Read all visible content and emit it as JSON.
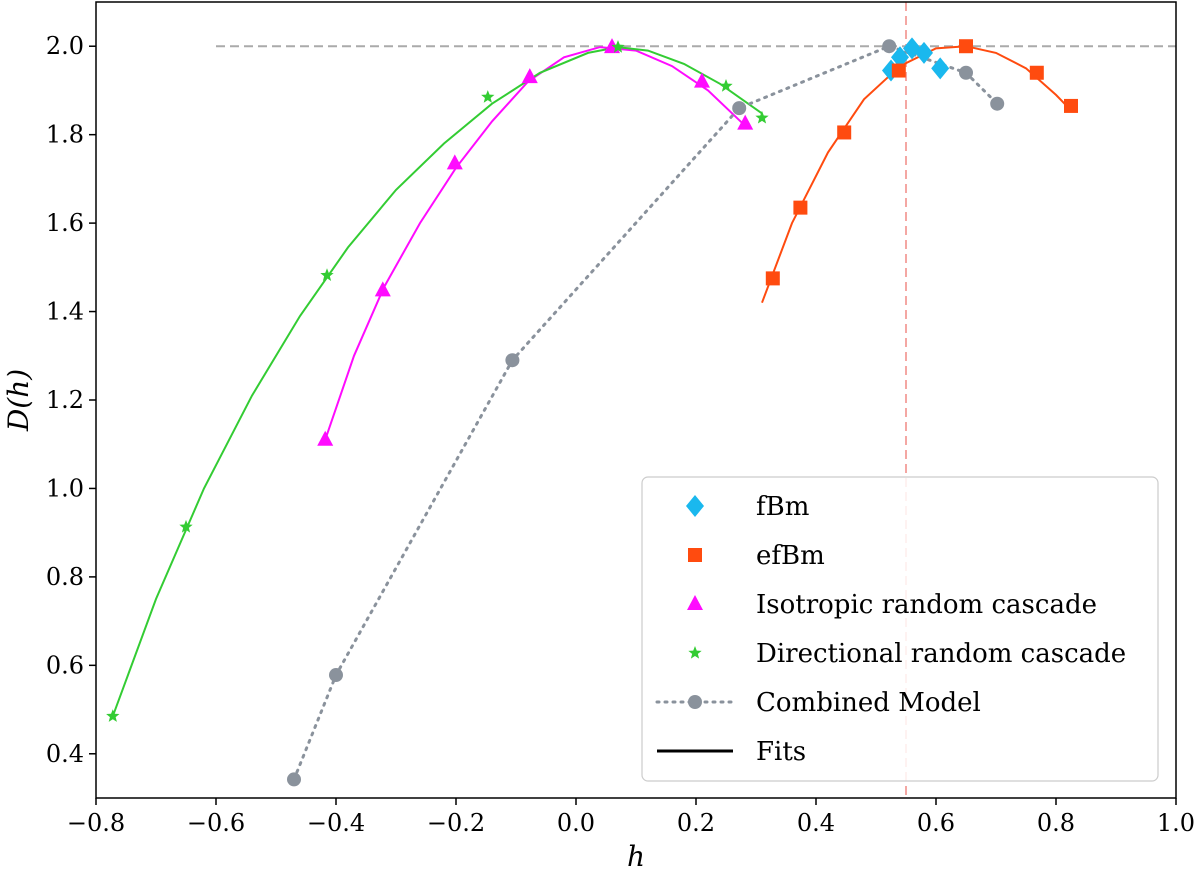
{
  "chart_data": {
    "type": "scatter",
    "title": "",
    "xlabel": "h",
    "ylabel": "D(h)",
    "xlim": [
      -0.8,
      1.0
    ],
    "ylim": [
      0.3,
      2.1
    ],
    "xticks": [
      -0.8,
      -0.6,
      -0.4,
      -0.2,
      0.0,
      0.2,
      0.4,
      0.6,
      0.8,
      1.0
    ],
    "xtick_labels": [
      "−0.8",
      "−0.6",
      "−0.4",
      "−0.2",
      "0.0",
      "0.2",
      "0.4",
      "0.6",
      "0.8",
      "1.0"
    ],
    "yticks": [
      0.4,
      0.6,
      0.8,
      1.0,
      1.2,
      1.4,
      1.6,
      1.8,
      2.0
    ],
    "ytick_labels": [
      "0.4",
      "0.6",
      "0.8",
      "1.0",
      "1.2",
      "1.4",
      "1.6",
      "1.8",
      "2.0"
    ],
    "grid": false,
    "legend_position": "lower-right",
    "reference_lines": {
      "horizontal": {
        "y": 2.0,
        "x_from": -0.6,
        "x_to": 1.0,
        "color": "#aaaaaa",
        "style": "dashed"
      },
      "vertical": {
        "x": 0.55,
        "color": "#f4a7a3",
        "style": "dashed"
      }
    },
    "series": [
      {
        "name": "fBm",
        "marker": "diamond",
        "color": "#1ab8ee",
        "x": [
          0.525,
          0.54,
          0.56,
          0.58,
          0.607
        ],
        "y": [
          1.945,
          1.975,
          1.995,
          1.985,
          1.95
        ]
      },
      {
        "name": "efBm",
        "marker": "square",
        "color": "#ff4b0f",
        "x": [
          0.328,
          0.374,
          0.447,
          0.538,
          0.65,
          0.768,
          0.825
        ],
        "y": [
          1.475,
          1.635,
          1.805,
          1.945,
          2.0,
          1.94,
          1.865
        ],
        "fit": {
          "x": [
            0.31,
            0.36,
            0.42,
            0.48,
            0.54,
            0.6,
            0.65,
            0.7,
            0.75,
            0.8,
            0.825
          ],
          "y": [
            1.42,
            1.6,
            1.76,
            1.88,
            1.955,
            1.995,
            2.0,
            1.985,
            1.95,
            1.89,
            1.855
          ]
        }
      },
      {
        "name": "Isotropic random cascade",
        "marker": "triangle",
        "color": "#ff0bff",
        "x": [
          -0.418,
          -0.322,
          -0.202,
          -0.077,
          0.06,
          0.21,
          0.282
        ],
        "y": [
          1.11,
          1.448,
          1.735,
          1.93,
          1.998,
          1.92,
          1.825
        ],
        "fit": {
          "x": [
            -0.418,
            -0.37,
            -0.32,
            -0.26,
            -0.2,
            -0.14,
            -0.08,
            -0.02,
            0.04,
            0.1,
            0.16,
            0.22,
            0.282
          ],
          "y": [
            1.11,
            1.3,
            1.455,
            1.6,
            1.725,
            1.83,
            1.92,
            1.975,
            1.998,
            1.99,
            1.955,
            1.9,
            1.82
          ]
        }
      },
      {
        "name": "Directional random cascade",
        "marker": "star",
        "color": "#33cc33",
        "x": [
          -0.772,
          -0.65,
          -0.415,
          -0.147,
          0.07,
          0.25,
          0.31
        ],
        "y": [
          0.485,
          0.913,
          1.482,
          1.885,
          1.998,
          1.91,
          1.838
        ],
        "fit": {
          "x": [
            -0.772,
            -0.7,
            -0.62,
            -0.54,
            -0.46,
            -0.38,
            -0.3,
            -0.22,
            -0.14,
            -0.06,
            0.02,
            0.07,
            0.12,
            0.18,
            0.24,
            0.31
          ],
          "y": [
            0.485,
            0.75,
            1.0,
            1.21,
            1.39,
            1.545,
            1.675,
            1.78,
            1.87,
            1.94,
            1.985,
            1.998,
            1.99,
            1.96,
            1.915,
            1.848
          ]
        }
      },
      {
        "name": "Combined Model",
        "marker": "circle",
        "line": "dotted",
        "color": "#8a929c",
        "x": [
          -0.47,
          -0.4,
          -0.106,
          0.272,
          0.522,
          0.65,
          0.702
        ],
        "y": [
          0.342,
          0.578,
          1.29,
          1.86,
          2.0,
          1.94,
          1.87
        ]
      },
      {
        "name": "Fits",
        "marker": "none",
        "line": "solid",
        "color": "#000000",
        "x": [],
        "y": []
      }
    ]
  }
}
